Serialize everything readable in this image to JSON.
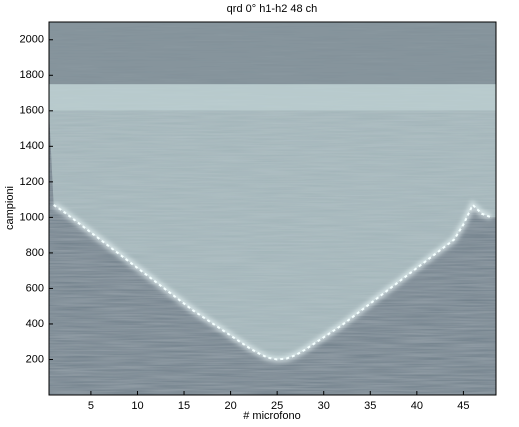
{
  "chart_data": {
    "type": "image",
    "title": "qrd 0°  h1-h2 48 ch",
    "xlabel": "# microfono",
    "ylabel": "campioni",
    "x": [
      1,
      2,
      3,
      4,
      5,
      6,
      7,
      8,
      9,
      10,
      11,
      12,
      13,
      14,
      15,
      16,
      17,
      18,
      19,
      20,
      21,
      22,
      23,
      24,
      25,
      26,
      27,
      28,
      29,
      30,
      31,
      32,
      33,
      34,
      35,
      36,
      37,
      38,
      39,
      40,
      41,
      42,
      43,
      44,
      45,
      46,
      47,
      48
    ],
    "values": [
      1070,
      1035,
      995,
      955,
      915,
      875,
      835,
      795,
      755,
      715,
      675,
      635,
      595,
      555,
      515,
      475,
      440,
      405,
      370,
      335,
      300,
      265,
      235,
      210,
      200,
      205,
      225,
      255,
      290,
      325,
      360,
      395,
      435,
      475,
      515,
      555,
      595,
      635,
      675,
      715,
      755,
      795,
      835,
      875,
      960,
      1070,
      1020,
      1000
    ],
    "color": "#f4ffff",
    "xlim": [
      0.5,
      48.5
    ],
    "ylim": [
      0,
      2100
    ],
    "xticks": [
      5,
      10,
      15,
      20,
      25,
      30,
      35,
      40,
      45
    ],
    "yticks": [
      200,
      400,
      600,
      800,
      1000,
      1200,
      1400,
      1600,
      1800,
      2000
    ]
  }
}
